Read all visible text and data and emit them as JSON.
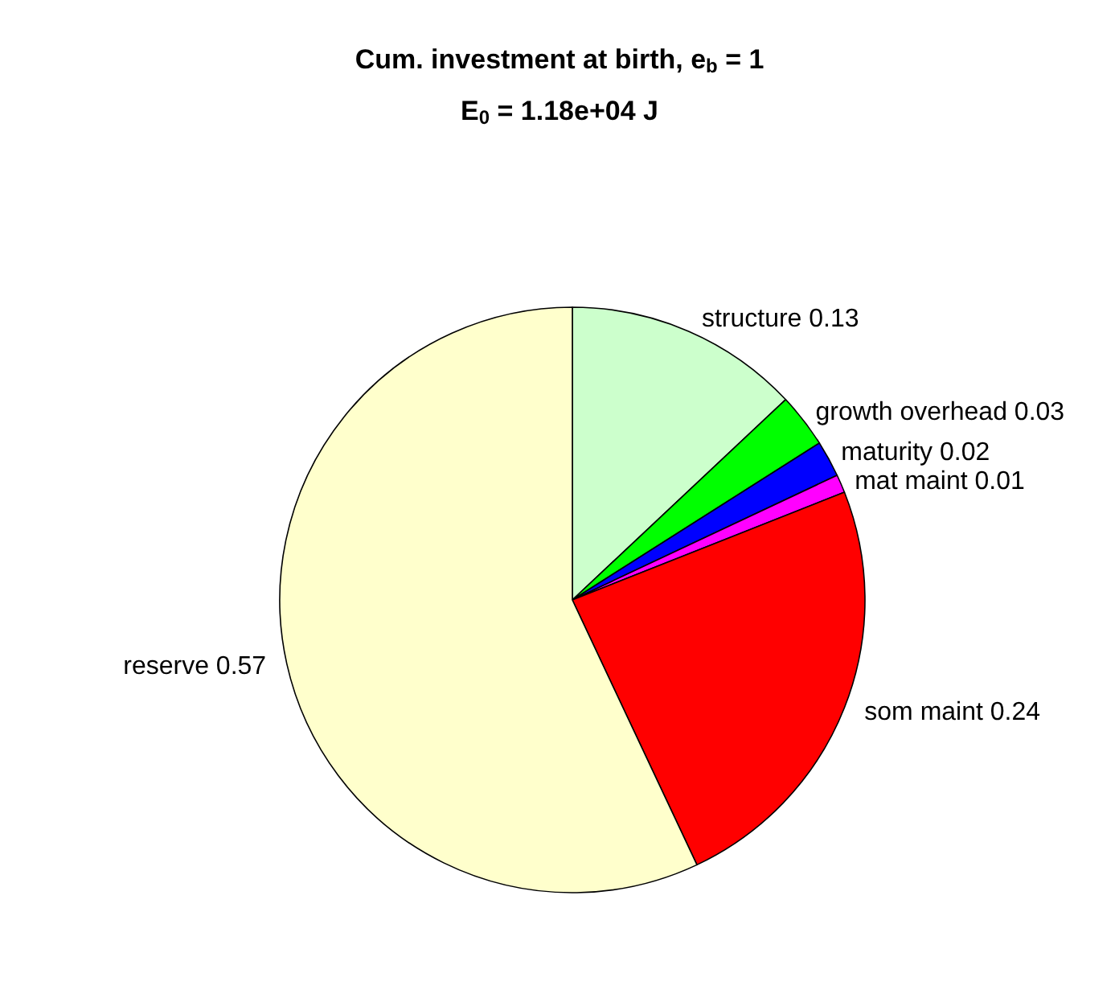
{
  "chart_data": {
    "type": "pie",
    "title": "Cum. investment at birth, e$_{b}$ = 1",
    "subtitle": "E$_{0}$ = 1.18e+04 J",
    "categories": [
      "structure 0.13",
      "growth overhead 0.03",
      "maturity 0.02",
      "mat maint 0.01",
      "som maint 0.24",
      "reserve 0.57"
    ],
    "values": [
      0.13,
      0.03,
      0.02,
      0.01,
      0.24,
      0.57
    ],
    "colors": [
      "#ccffcc",
      "#00ff00",
      "#0000ff",
      "#ff00ff",
      "#ff0000",
      "#ffffcc"
    ],
    "legend": false
  }
}
